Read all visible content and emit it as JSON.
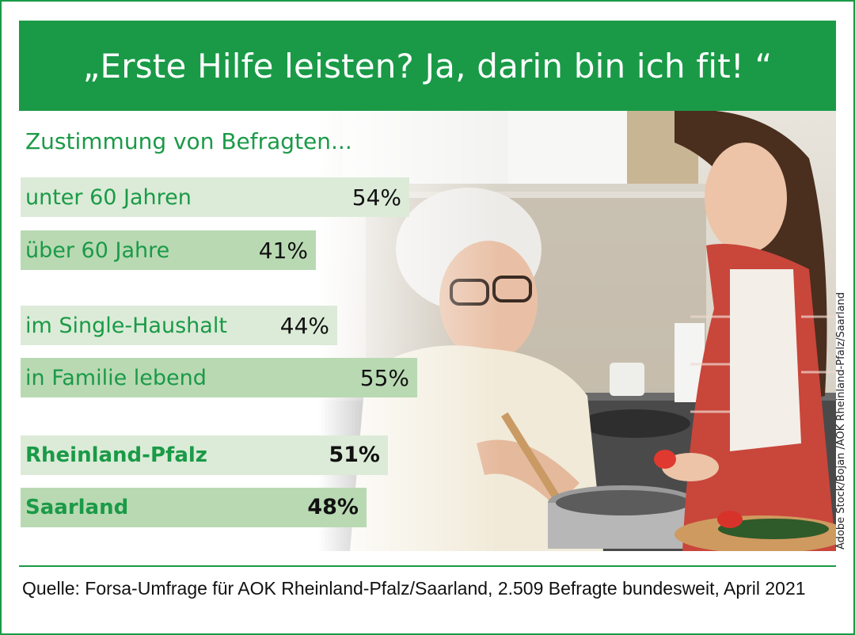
{
  "header": {
    "title": "„Erste Hilfe leisten? Ja, darin bin ich fit! “"
  },
  "colors": {
    "brand_green": "#1a9a47",
    "bar_light": "#dcebd8",
    "bar_mid": "#b9d9b3"
  },
  "chart_data": {
    "type": "bar",
    "orientation": "horizontal",
    "title": "Zustimmung von Befragten...",
    "unit": "%",
    "groups": [
      {
        "items": [
          {
            "label": "unter 60 Jahren",
            "value": 54,
            "value_label": "54%",
            "shade": "light"
          },
          {
            "label": "über 60 Jahre",
            "value": 41,
            "value_label": "41%",
            "shade": "mid"
          }
        ]
      },
      {
        "items": [
          {
            "label": "im Single-Haushalt",
            "value": 44,
            "value_label": "44%",
            "shade": "light"
          },
          {
            "label": "in Familie lebend",
            "value": 55,
            "value_label": "55%",
            "shade": "mid"
          }
        ]
      },
      {
        "bold": true,
        "items": [
          {
            "label": "Rheinland-Pfalz",
            "value": 51,
            "value_label": "51%",
            "shade": "light"
          },
          {
            "label": "Saarland",
            "value": 48,
            "value_label": "48%",
            "shade": "mid"
          }
        ]
      }
    ]
  },
  "photo": {
    "credit": "Adobe Stock/Bojan /AOK Rheinland-Pfalz/Saarland"
  },
  "footer": {
    "source": "Quelle: Forsa-Umfrage für AOK Rheinland-Pfalz/Saarland, 2.509 Befragte bundesweit, April 2021"
  }
}
